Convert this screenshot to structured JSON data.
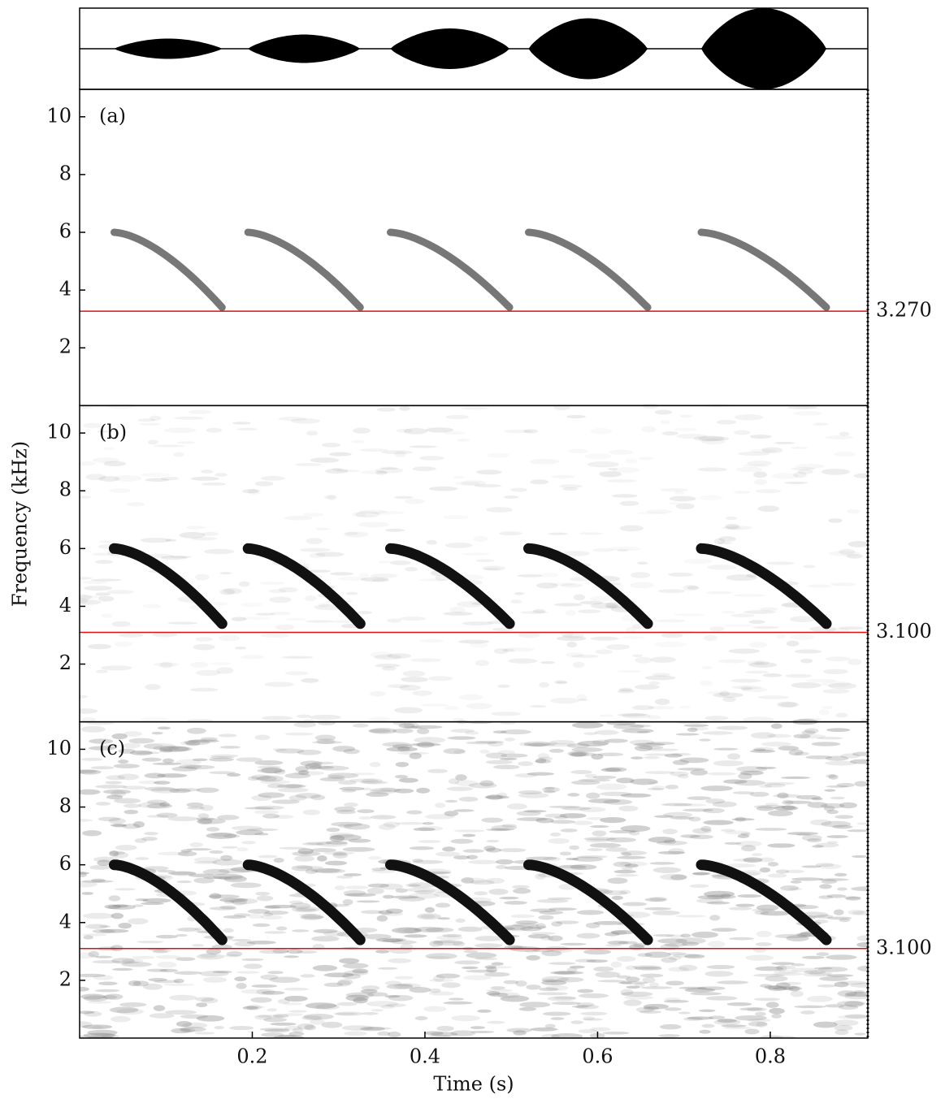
{
  "chart_data": {
    "type": "spectrogram",
    "x_label": "Time (s)",
    "y_label": "Frequency (kHz)",
    "xlim": [
      0,
      0.913
    ],
    "xticks": [
      0.2,
      0.4,
      0.6,
      0.8
    ],
    "calls": [
      {
        "start": 0.04,
        "end": 0.165,
        "f_start": 6.0,
        "f_end": 3.4
      },
      {
        "start": 0.195,
        "end": 0.325,
        "f_start": 6.0,
        "f_end": 3.4
      },
      {
        "start": 0.36,
        "end": 0.498,
        "f_start": 6.0,
        "f_end": 3.4
      },
      {
        "start": 0.52,
        "end": 0.658,
        "f_start": 6.0,
        "f_end": 3.4
      },
      {
        "start": 0.72,
        "end": 0.865,
        "f_start": 6.0,
        "f_end": 3.4
      }
    ],
    "waveform": {
      "ylim": [
        -1,
        1
      ],
      "amplitudes": [
        0.25,
        0.35,
        0.5,
        0.75,
        1.0
      ]
    },
    "panels": [
      {
        "label": "(a)",
        "ylim": [
          0,
          10.95
        ],
        "yticks": [
          2,
          4,
          6,
          8,
          10
        ],
        "threshold": {
          "value": 3.27,
          "label": "3.270"
        },
        "call_color": "#555555",
        "threshold_color": "#dd1111"
      },
      {
        "label": "(b)",
        "ylim": [
          0,
          10.95
        ],
        "yticks": [
          2,
          4,
          6,
          8,
          10
        ],
        "threshold": {
          "value": 3.1,
          "label": "3.100"
        },
        "call_color": "#111111",
        "threshold_color": "#dd1111"
      },
      {
        "label": "(c)",
        "ylim": [
          0,
          10.95
        ],
        "yticks": [
          2,
          4,
          6,
          8,
          10
        ],
        "threshold": {
          "value": 3.1,
          "label": "3.100"
        },
        "call_color": "#111111",
        "threshold_color": "#dd1111"
      }
    ]
  }
}
